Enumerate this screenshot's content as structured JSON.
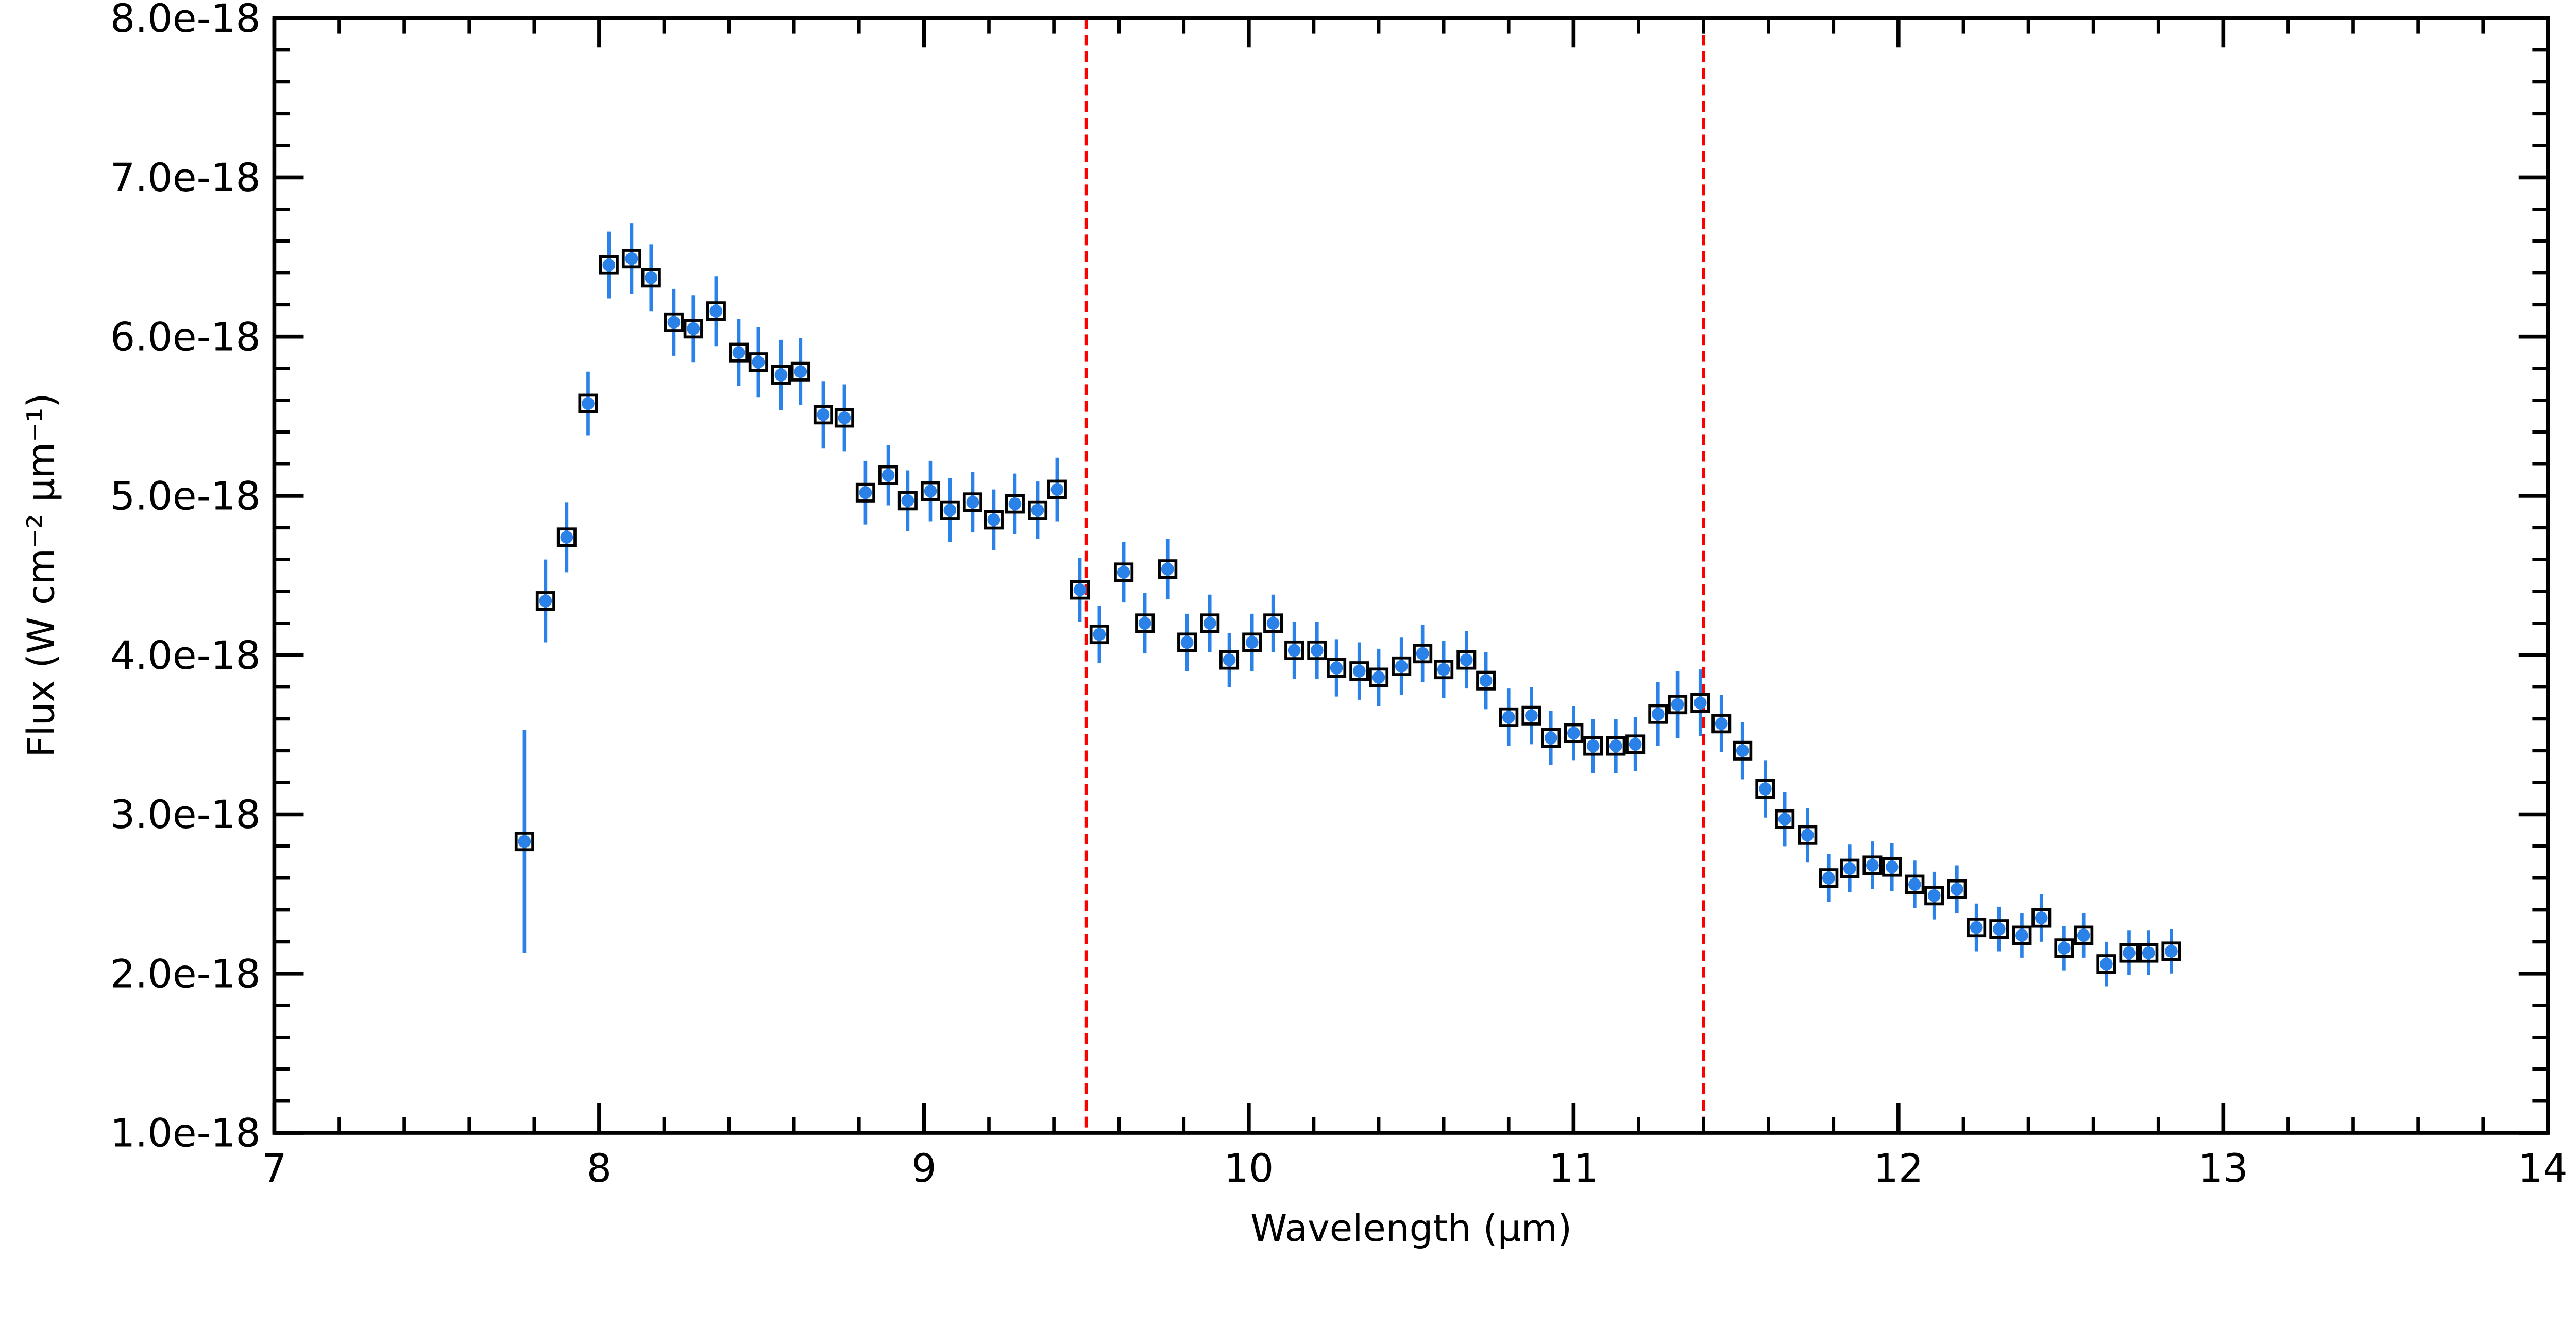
{
  "chart_data": {
    "type": "scatter",
    "title": "",
    "xlabel": "Wavelength (μm)",
    "ylabel": "Flux (W cm⁻² μm⁻¹)",
    "xlim": [
      7,
      14
    ],
    "ylim": [
      1e-18,
      8e-18
    ],
    "x_ticks": [
      7,
      8,
      9,
      10,
      11,
      12,
      13,
      14
    ],
    "x_tick_labels": [
      "7",
      "8",
      "9",
      "10",
      "11",
      "12",
      "13",
      "14"
    ],
    "y_ticks": [
      1e-18,
      2e-18,
      3e-18,
      4e-18,
      5e-18,
      6e-18,
      7e-18,
      8e-18
    ],
    "y_tick_labels": [
      "1.0e-18",
      "2.0e-18",
      "3.0e-18",
      "4.0e-18",
      "5.0e-18",
      "6.0e-18",
      "7.0e-18",
      "8.0e-18"
    ],
    "x_minor_step": 0.2,
    "y_minor_step": 2e-19,
    "grid": false,
    "marker_color": "#2a82e9",
    "marker_edge_color": "#000000",
    "vlines": [
      {
        "x": 9.5,
        "color": "#ff0000",
        "style": "dashed"
      },
      {
        "x": 11.4,
        "color": "#ff0000",
        "style": "dashed"
      }
    ],
    "x": [
      7.77,
      7.835,
      7.9,
      7.966,
      8.03,
      8.1,
      8.16,
      8.23,
      8.29,
      8.36,
      8.43,
      8.49,
      8.56,
      8.62,
      8.69,
      8.755,
      8.82,
      8.89,
      8.95,
      9.02,
      9.08,
      9.15,
      9.215,
      9.28,
      9.35,
      9.41,
      9.48,
      9.54,
      9.615,
      9.68,
      9.75,
      9.81,
      9.88,
      9.94,
      10.01,
      10.075,
      10.14,
      10.21,
      10.27,
      10.34,
      10.4,
      10.47,
      10.535,
      10.6,
      10.67,
      10.73,
      10.8,
      10.87,
      10.93,
      11.0,
      11.06,
      11.13,
      11.19,
      11.26,
      11.32,
      11.39,
      11.455,
      11.52,
      11.59,
      11.65,
      11.72,
      11.785,
      11.85,
      11.92,
      11.98,
      12.05,
      12.11,
      12.18,
      12.24,
      12.31,
      12.38,
      12.44,
      12.51,
      12.57,
      12.64,
      12.71,
      12.77,
      12.84
    ],
    "y": [
      2.83e-18,
      4.34e-18,
      4.74e-18,
      5.58e-18,
      6.45e-18,
      6.49e-18,
      6.37e-18,
      6.09e-18,
      6.05e-18,
      6.16e-18,
      5.9e-18,
      5.84e-18,
      5.76e-18,
      5.78e-18,
      5.51e-18,
      5.49e-18,
      5.02e-18,
      5.13e-18,
      4.97e-18,
      5.03e-18,
      4.91e-18,
      4.96e-18,
      4.85e-18,
      4.95e-18,
      4.91e-18,
      5.04e-18,
      4.41e-18,
      4.13e-18,
      4.52e-18,
      4.2e-18,
      4.54e-18,
      4.08e-18,
      4.2e-18,
      3.97e-18,
      4.08e-18,
      4.2e-18,
      4.03e-18,
      4.03e-18,
      3.92e-18,
      3.9e-18,
      3.86e-18,
      3.93e-18,
      4.01e-18,
      3.91e-18,
      3.97e-18,
      3.84e-18,
      3.61e-18,
      3.62e-18,
      3.48e-18,
      3.51e-18,
      3.43e-18,
      3.43e-18,
      3.44e-18,
      3.63e-18,
      3.69e-18,
      3.7e-18,
      3.57e-18,
      3.4e-18,
      3.16e-18,
      2.97e-18,
      2.87e-18,
      2.6e-18,
      2.66e-18,
      2.68e-18,
      2.67e-18,
      2.56e-18,
      2.49e-18,
      2.53e-18,
      2.29e-18,
      2.28e-18,
      2.24e-18,
      2.35e-18,
      2.16e-18,
      2.24e-18,
      2.06e-18,
      2.13e-18,
      2.13e-18,
      2.14e-18
    ],
    "yerr": [
      7e-19,
      2.6e-19,
      2.2e-19,
      2e-19,
      2.1e-19,
      2.2e-19,
      2.1e-19,
      2.1e-19,
      2.1e-19,
      2.2e-19,
      2.1e-19,
      2.2e-19,
      2.2e-19,
      2.1e-19,
      2.1e-19,
      2.1e-19,
      2e-19,
      1.9e-19,
      1.9e-19,
      1.9e-19,
      2e-19,
      1.9e-19,
      1.9e-19,
      1.9e-19,
      1.8e-19,
      2e-19,
      2e-19,
      1.8e-19,
      1.9e-19,
      1.9e-19,
      1.9e-19,
      1.8e-19,
      1.8e-19,
      1.7e-19,
      1.8e-19,
      1.8e-19,
      1.8e-19,
      1.8e-19,
      1.8e-19,
      1.8e-19,
      1.8e-19,
      1.8e-19,
      1.8e-19,
      1.8e-19,
      1.8e-19,
      1.8e-19,
      1.8e-19,
      1.8e-19,
      1.7e-19,
      1.7e-19,
      1.7e-19,
      1.7e-19,
      1.7e-19,
      2e-19,
      2.1e-19,
      2.1e-19,
      1.8e-19,
      1.8e-19,
      1.8e-19,
      1.7e-19,
      1.7e-19,
      1.5e-19,
      1.5e-19,
      1.5e-19,
      1.5e-19,
      1.5e-19,
      1.5e-19,
      1.5e-19,
      1.5e-19,
      1.4e-19,
      1.4e-19,
      1.5e-19,
      1.4e-19,
      1.4e-19,
      1.4e-19,
      1.4e-19,
      1.4e-19,
      1.4e-19
    ]
  }
}
